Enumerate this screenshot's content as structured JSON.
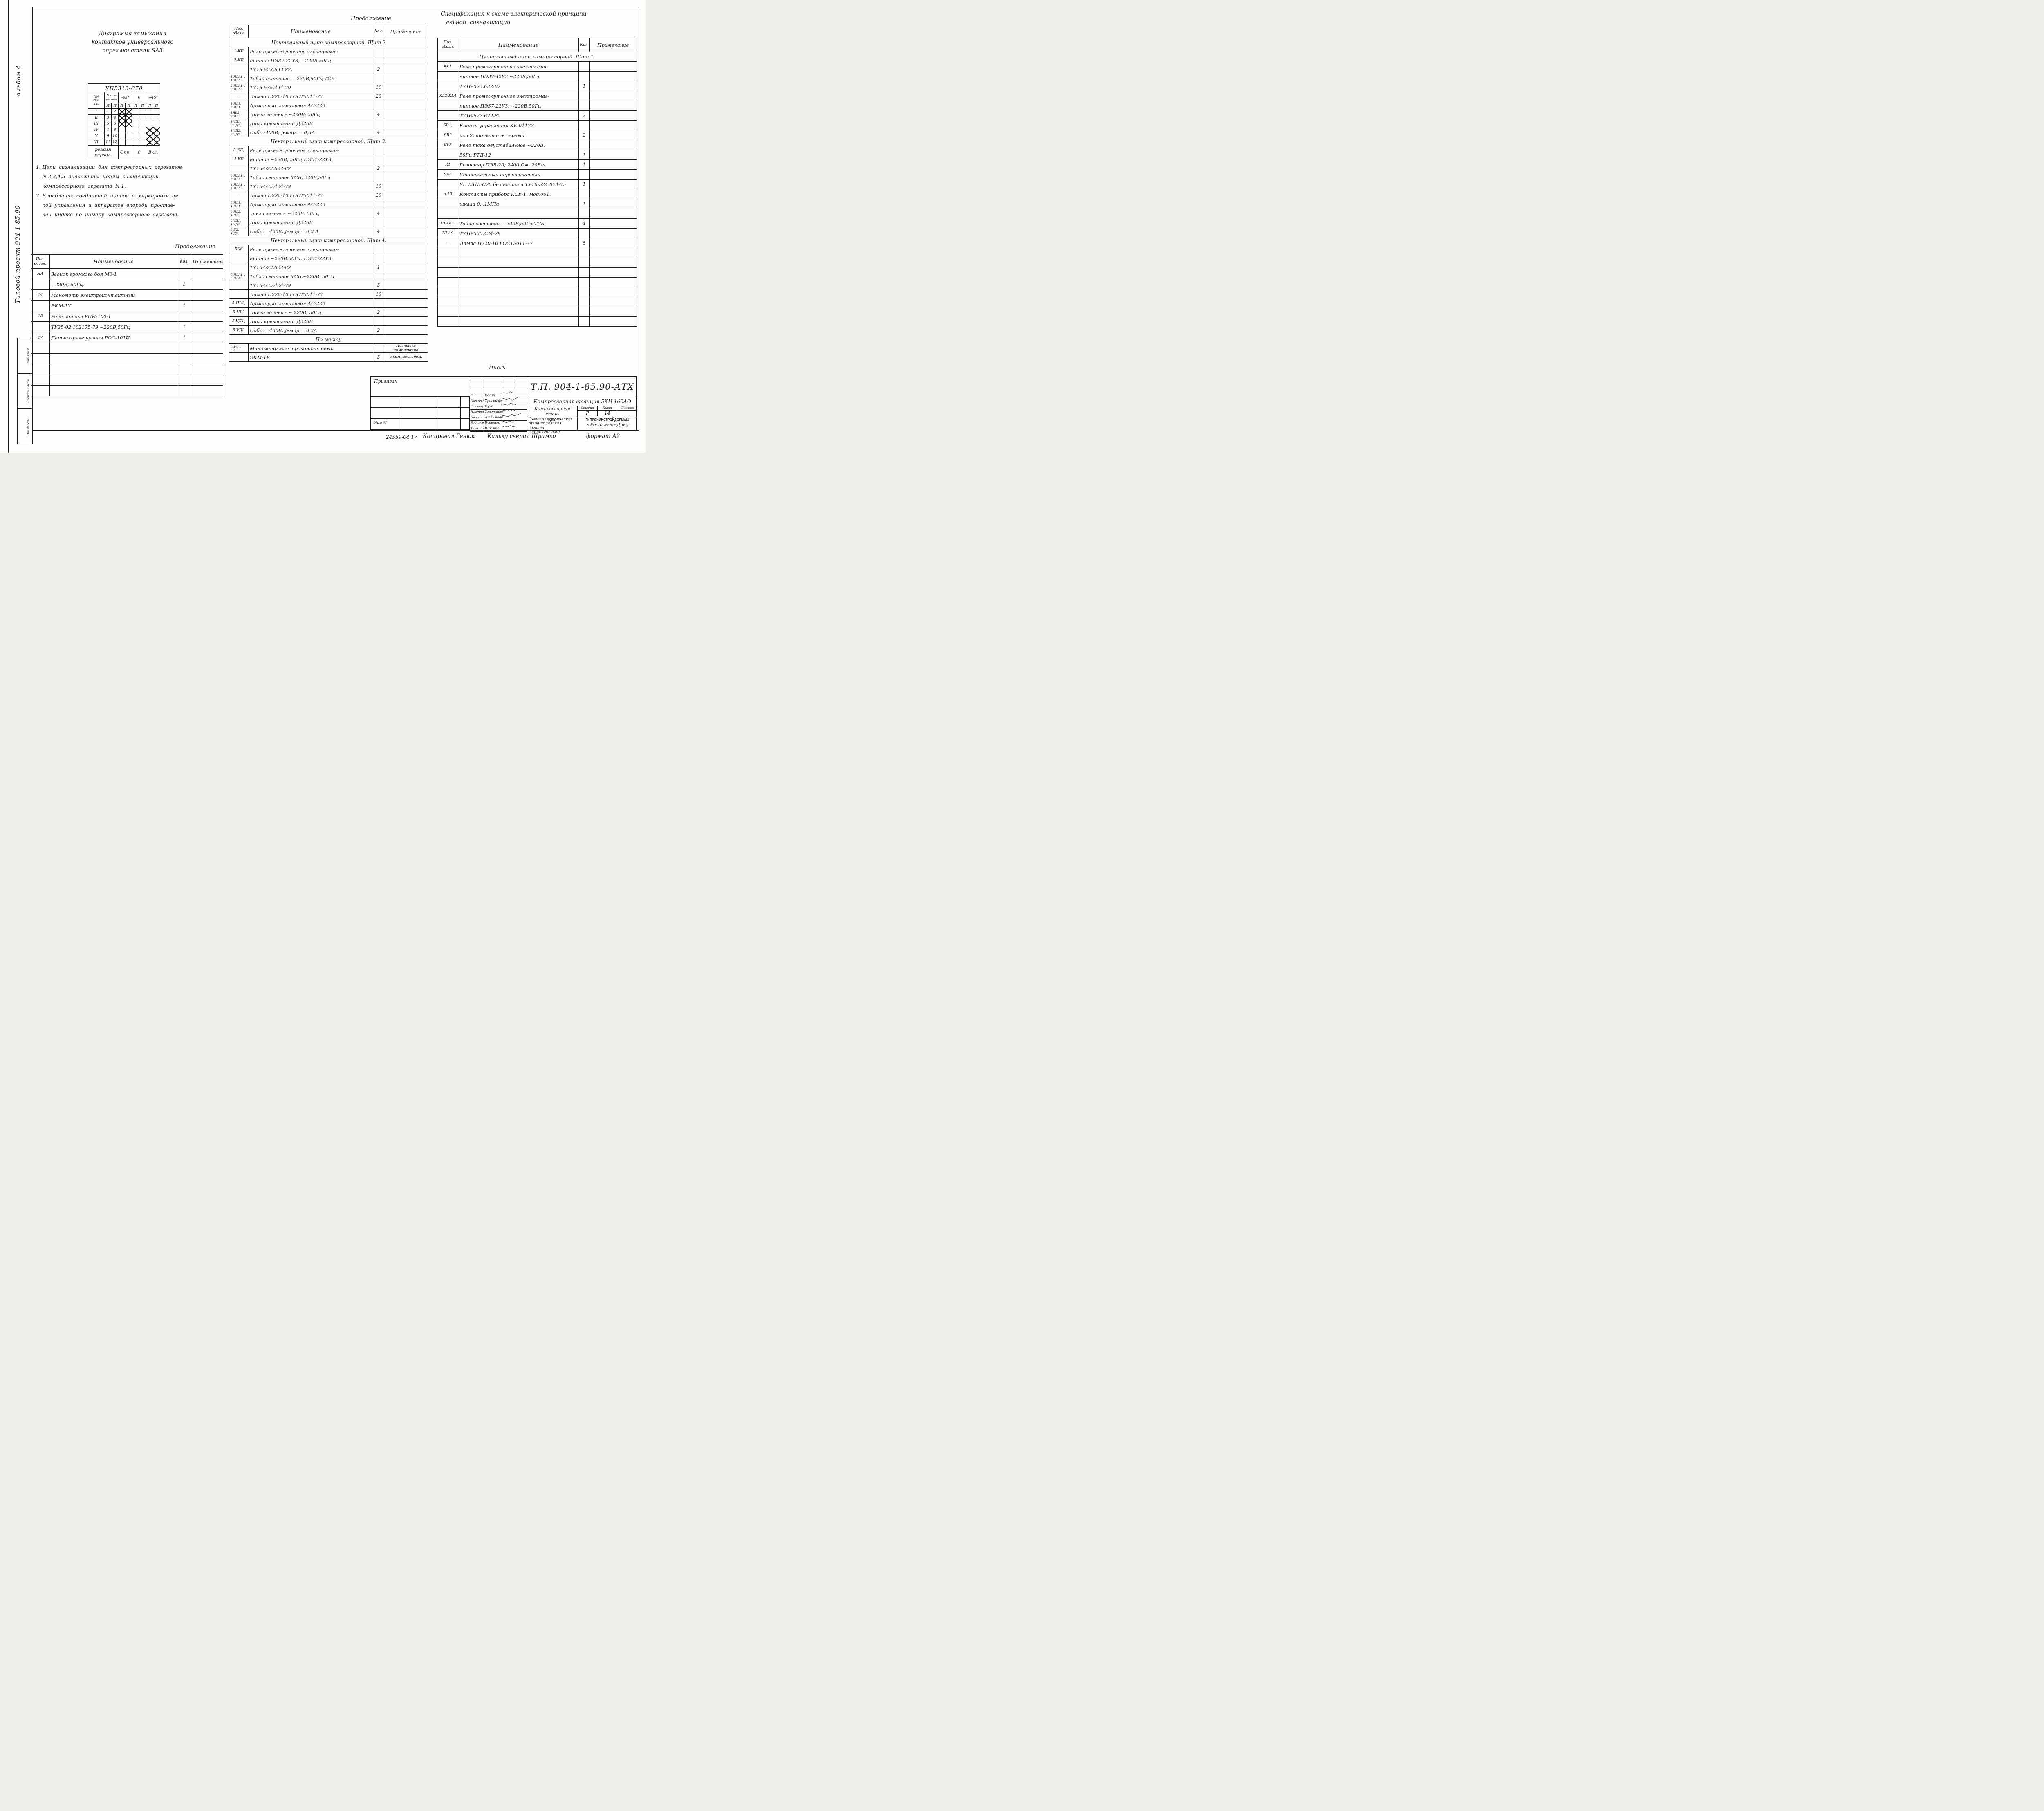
{
  "colors": {
    "ink": "#1a1a1a",
    "paper": "#fdfdfb"
  },
  "margin": {
    "album": "Альбом 4",
    "project": "Типовой проект 904-1-85.90",
    "stamps": {
      "s1": "Взам.инв.N",
      "s2": "Подпись и дата",
      "s3": "Инв.N подл."
    }
  },
  "diagram": {
    "title": "Диаграмма замыкания\nконтактов универсального\nпереключателя SA3",
    "table": {
      "model": "УП5313-С70",
      "col_section": "NN\nсек-\nции",
      "col_contact": "N кон-\nтакта",
      "angle1": "-45°",
      "angle2": "0",
      "angle3": "+45°",
      "l": "Л",
      "p": "П",
      "rows": [
        {
          "sec": "I",
          "c1": "1",
          "c2": "2",
          "marks": [
            1,
            1,
            0,
            0,
            0,
            0
          ]
        },
        {
          "sec": "II",
          "c1": "3",
          "c2": "4",
          "marks": [
            1,
            1,
            0,
            0,
            0,
            0
          ]
        },
        {
          "sec": "III",
          "c1": "5",
          "c2": "6",
          "marks": [
            1,
            1,
            0,
            0,
            0,
            0
          ]
        },
        {
          "sec": "IV",
          "c1": "7",
          "c2": "8",
          "marks": [
            0,
            0,
            0,
            0,
            1,
            1
          ]
        },
        {
          "sec": "V",
          "c1": "9",
          "c2": "10",
          "marks": [
            0,
            0,
            0,
            0,
            1,
            1
          ]
        },
        {
          "sec": "VI",
          "c1": "11",
          "c2": "12",
          "marks": [
            0,
            0,
            0,
            0,
            1,
            1
          ]
        }
      ],
      "mode_label": "режим\nуправл.",
      "mode1": "Опр.",
      "mode2": "0",
      "mode3": "Вкл."
    }
  },
  "notes": {
    "n1": "1. Цепи  сигнализации  для  компрессорных  агрегатов\n    N 2,3,4,5  аналогичны  цепям  сигнализации\n    компрессорного  агрегата  N 1.",
    "n2": "2. В таблицах  соединений  щитов  в  маркировке  це-\n    пей  управления  и  аппаратов  впереди  простав-\n    лен  индекс  по  номеру  компрессорного  агрегата."
  },
  "labels": {
    "continuation_left": "Продолжение",
    "continuation_middle": "Продолжение",
    "inv_top": "Инв.N"
  },
  "left_table": {
    "headers": {
      "pos": "Поз.\nобозн.",
      "name": "Наименование",
      "qty": "Кол.",
      "note": "Примечание"
    },
    "rows": [
      {
        "pos": "НА",
        "name": "Звонок  громкого  боя  МЗ-1",
        "qty": "",
        "note": ""
      },
      {
        "pos": "",
        "name": "~220В, 50Гц.",
        "qty": "1",
        "note": ""
      },
      {
        "pos": "14",
        "name": "Манометр  электроконтактный",
        "qty": "",
        "note": ""
      },
      {
        "pos": "",
        "name": "ЭКМ-1У",
        "qty": "1",
        "note": ""
      },
      {
        "pos": "18",
        "name": "Реле  потока  РПИ-100-1",
        "qty": "",
        "note": ""
      },
      {
        "pos": "",
        "name": "ТУ25-02.102175-79  ~220В;50Гц",
        "qty": "1",
        "note": ""
      },
      {
        "pos": "17",
        "name": "Датчик-реле  уровня  РОС-101И",
        "qty": "1",
        "note": ""
      },
      {
        "pos": "",
        "name": "",
        "qty": "",
        "note": ""
      },
      {
        "pos": "",
        "name": "",
        "qty": "",
        "note": ""
      },
      {
        "pos": "",
        "name": "",
        "qty": "",
        "note": ""
      },
      {
        "pos": "",
        "name": "",
        "qty": "",
        "note": ""
      },
      {
        "pos": "",
        "name": "",
        "qty": "",
        "note": ""
      }
    ]
  },
  "middle_table": {
    "headers": {
      "pos": "Поз.\nобозн.",
      "name": "Наименование",
      "qty": "Кол.",
      "note": "Примечание"
    },
    "rows": [
      {
        "section": "Центральный щит компрессорной.  Щит 2"
      },
      {
        "pos": "1-КБ",
        "name": "Реле промежуточное электромаг-",
        "qty": "",
        "note": ""
      },
      {
        "pos": "2-КБ",
        "name": "нитное  ПЭ37-22УЗ, ~220В,50Гц",
        "qty": "",
        "note": ""
      },
      {
        "pos": "",
        "name": "ТУ16-523.622-82.",
        "qty": "2",
        "note": ""
      },
      {
        "pos": "1-HLA1...",
        "pos2": "1-HLA5",
        "name": "Табло  световое ~ 220В,50Гц  ТСБ",
        "qty": "",
        "note": ""
      },
      {
        "pos": "2-HLA1...",
        "pos2": "2-HLA5",
        "name": "ТУ16-535.424-79",
        "qty": "10",
        "note": ""
      },
      {
        "pos": "—",
        "name": "Лампа  Ц220-10  ГОСТ5011-77",
        "qty": "20",
        "note": ""
      },
      {
        "pos": "1-HL1,",
        "pos2": "2-HL1",
        "name": "Арматура  сигнальная  АС-220",
        "qty": "",
        "note": ""
      },
      {
        "pos": "1HL2",
        "pos2": "2-HL2",
        "name": "Линза  зеленая  ~220В; 50Гц",
        "qty": "4",
        "note": ""
      },
      {
        "pos": "1-VД1,",
        "pos2": "2-VД1,",
        "name": "Диод  кремниевый  Д226Б",
        "qty": "",
        "note": ""
      },
      {
        "pos": "1-VД2,",
        "pos2": "2-VД2",
        "name": "Uобр.-400В;     Jвыпр. = 0,3А",
        "qty": "4",
        "note": ""
      },
      {
        "section": "Центральный  щит  компрессорной.  Щит 3."
      },
      {
        "pos": "3-КБ,",
        "name": "Реле промежуточное  электромаг-",
        "qty": "",
        "note": ""
      },
      {
        "pos": "4-КБ",
        "name": "нитное ~220В, 50Гц  ПЭ37-22УЗ,",
        "qty": "",
        "note": ""
      },
      {
        "pos": "",
        "name": "ТУ16-523.622-82",
        "qty": "2",
        "note": ""
      },
      {
        "pos": "3-HLA1...",
        "pos2": "3-HLA5",
        "name": "Табло световое  ТСБ, 220В,50Гц",
        "qty": "",
        "note": ""
      },
      {
        "pos": "4-HLA1...",
        "pos2": "4-HLA5",
        "name": "ТУ16-535.424-79",
        "qty": "10",
        "note": ""
      },
      {
        "pos": "—",
        "name": "Лампа  Ц220-10  ГОСТ5011-77",
        "qty": "20",
        "note": ""
      },
      {
        "pos": "3-HL1,",
        "pos2": "4-HL1",
        "name": "Арматура сигнальная  АС-220",
        "qty": "",
        "note": ""
      },
      {
        "pos": "3-HL2,",
        "pos2": "4-HL2",
        "name": "линза  зеленая  ~220В; 50Гц",
        "qty": "4",
        "note": ""
      },
      {
        "pos": "3-VД1,",
        "pos2": "4-VД1",
        "name": "Диод кремниевый  Д226Б",
        "qty": "",
        "note": ""
      },
      {
        "pos": "3-Д2,",
        "pos2": "4-Д2",
        "name": "Uобр.= 400В,    Jвыпр.= 0,3 А",
        "qty": "4",
        "note": ""
      },
      {
        "section": "Центральный  щит  компрессорной.  Щит 4."
      },
      {
        "pos": "5К6",
        "name": "Реле промежуточное  электромаг-",
        "qty": "",
        "note": ""
      },
      {
        "pos": "",
        "name": "нитное  ~220В,50Гц. ПЭ37-22УЗ,",
        "qty": "",
        "note": ""
      },
      {
        "pos": "",
        "name": "ТУ16-523.622-82",
        "qty": "1",
        "note": ""
      },
      {
        "pos": "5-HLA1...",
        "pos2": "5-HLA5",
        "name": "Табло световое  ТСБ,~220В, 50Гц",
        "qty": "",
        "note": ""
      },
      {
        "pos": "",
        "name": "ТУ16-535.424-79",
        "qty": "5",
        "note": ""
      },
      {
        "pos": "—",
        "name": "Лампа  Ц220-10   ГОСТ5011-77",
        "qty": "10",
        "note": ""
      },
      {
        "pos": "5-HL1,",
        "name": "Арматура  сигнальная  АС-220",
        "qty": "",
        "note": ""
      },
      {
        "pos": "5-HL2",
        "name": "Линза  зеленая ~ 220В; 50Гц",
        "qty": "2",
        "note": ""
      },
      {
        "pos": "5-VД1,",
        "name": "Диод  кремниевый  Д226Б",
        "qty": "",
        "note": ""
      },
      {
        "pos": "5-VД2",
        "name": "Uобр.= 400В,    Jвыпр.= 0,3А",
        "qty": "2",
        "note": ""
      },
      {
        "section": "По  месту"
      },
      {
        "pos": "п.1-6...",
        "pos2": "5-6",
        "name": "Манометр  электроконтактный",
        "qty": "",
        "note": "Поставка\nкомплектно"
      },
      {
        "pos": "",
        "name": "ЭКМ-1У",
        "qty": "5",
        "note": "с компрессором."
      }
    ]
  },
  "right_table": {
    "title": "Спецификация к схеме электрической принципи-\n   альной  сигнализации",
    "headers": {
      "pos": "Поз.\nобозн.",
      "name": "Наименование",
      "qty": "Кол.",
      "note": "Примечание"
    },
    "rows": [
      {
        "section": "Центральный  щит  компрессорной.  Щит 1."
      },
      {
        "pos": "KL1",
        "name": "Реле промежуточное  электромаг-",
        "qty": "",
        "note": ""
      },
      {
        "pos": "",
        "name": "нитное  ПЭ37-42УЗ  ~220В,50Гц",
        "qty": "",
        "note": ""
      },
      {
        "pos": "",
        "name": "ТУ16-523.622-82",
        "qty": "1",
        "note": ""
      },
      {
        "pos": "KL2;KL4",
        "name": "Реле промежуточное  электромаг-",
        "qty": "",
        "note": ""
      },
      {
        "pos": "",
        "name": "нитное  ПЭ37-22УЗ, ~220В,50Гц",
        "qty": "",
        "note": ""
      },
      {
        "pos": "",
        "name": "ТУ16-523.622-82",
        "qty": "2",
        "note": ""
      },
      {
        "pos": "SB1,",
        "name": "Кнопка  управления  КЕ-011УЗ",
        "qty": "",
        "note": ""
      },
      {
        "pos": "SB2",
        "name": "исп.2, толкатель  черный",
        "qty": "2",
        "note": ""
      },
      {
        "pos": "KL3",
        "name": "Реле тока двустабильное ~220В,",
        "qty": "",
        "note": ""
      },
      {
        "pos": "",
        "name": "50Гц  РТД-12",
        "qty": "1",
        "note": ""
      },
      {
        "pos": "R1",
        "name": "Резистор  ПЭВ-20; 2400 Ом,  20Вт",
        "qty": "1",
        "note": ""
      },
      {
        "pos": "SA3",
        "name": "Универсальный  переключатель",
        "qty": "",
        "note": ""
      },
      {
        "pos": "",
        "name": "УП 5313-С70 без надписи ТУ16-524.074-75",
        "qty": "1",
        "note": ""
      },
      {
        "pos": "п.15",
        "name": "Контакты  прибора  КСУ-1, мод.061,",
        "qty": "",
        "note": ""
      },
      {
        "pos": "",
        "name": "шкала  0...1МПа",
        "qty": "1",
        "note": ""
      },
      {
        "pos": "",
        "name": "",
        "qty": "",
        "note": ""
      },
      {
        "pos": "HLA6...",
        "name": "Табло  световое ~ 220В,50Гц  ТСБ",
        "qty": "4",
        "note": ""
      },
      {
        "pos": "HLA9",
        "name": "ТУ16-535.424-79",
        "qty": "",
        "note": ""
      },
      {
        "pos": "—",
        "name": "Лампа  Ц220-10  ГОСТ5011-77",
        "qty": "8",
        "note": ""
      },
      {
        "pos": "",
        "name": "",
        "qty": "",
        "note": ""
      },
      {
        "pos": "",
        "name": "",
        "qty": "",
        "note": ""
      },
      {
        "pos": "",
        "name": "",
        "qty": "",
        "note": ""
      },
      {
        "pos": "",
        "name": "",
        "qty": "",
        "note": ""
      },
      {
        "pos": "",
        "name": "",
        "qty": "",
        "note": ""
      },
      {
        "pos": "",
        "name": "",
        "qty": "",
        "note": ""
      },
      {
        "pos": "",
        "name": "",
        "qty": "",
        "note": ""
      },
      {
        "pos": "",
        "name": "",
        "qty": "",
        "note": ""
      }
    ]
  },
  "title_block": {
    "attached": "Привязан",
    "inv": "Инв.N",
    "doc_number": "Т.П. 904-1-85.90-АТХ",
    "object": "Компрессорная  станция 5КЦ-160АО",
    "object_short": "Компрессорная  стан-\nция",
    "stage_h1": "Стадия",
    "stage_h2": "Лист",
    "stage_h3": "Листов",
    "stage": "Р",
    "sheet": "14",
    "sheets": "",
    "drawing": "Схема  электрическая\nпринципиальная сигнали-\nзации.      (Начало)",
    "org1": "ГИПРОНИИСТРОЙДОРМАШ",
    "org2": "г.Ростов-на-Дону",
    "people": [
      {
        "role": "Гип",
        "name": "Коган"
      },
      {
        "role": "Нач.отд.",
        "name": "Христофоров"
      },
      {
        "role": "Гл.спец.",
        "name": "Фукс"
      },
      {
        "role": "Н.контр.",
        "name": "Золотарева"
      },
      {
        "role": "Нач.гр.",
        "name": "Любимова"
      },
      {
        "role": "Вед.инж.",
        "name": "Бутенко"
      },
      {
        "role": "Техн.Шк.",
        "name": "Шрамко"
      }
    ]
  },
  "footer": {
    "number": "24559-04  17",
    "copied": "Копировал Генюк",
    "checked": "Кальку сверил Шрамко",
    "format": "формат А2"
  }
}
